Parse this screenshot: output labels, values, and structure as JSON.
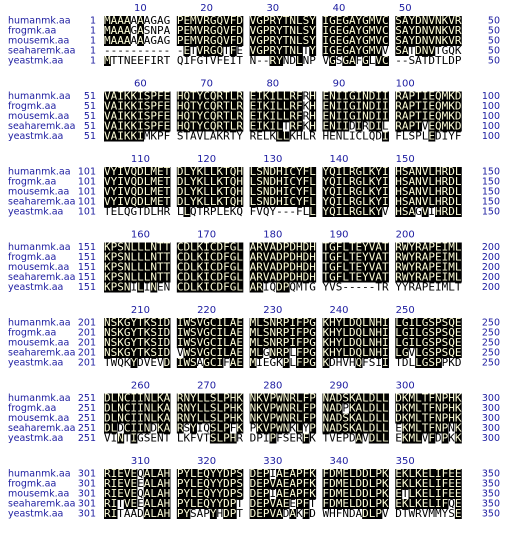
{
  "blocks": [
    {
      "ruler": [
        10,
        20,
        30,
        40,
        50
      ],
      "rows": [
        {
          "name": "humanmk.aa",
          "start": 1,
          "seq": "MAAAAAAGAG PEMVRGQVFD VGPRYTNLSY IGEGAYGMVC SAYDNVNKVR",
          "end": 50
        },
        {
          "name": "frogmk.aa",
          "start": 1,
          "seq": "MAAAGASNPA PEMVRGQVFD VGPRYTNLSY IGEGAYGMVC SAYDNVNKVR",
          "end": 50
        },
        {
          "name": "mousemk.aa",
          "start": 1,
          "seq": "MAAAAAAGAG PEMVRGQVFD VGPRYTNLSY IGEGAYGMVC SAYDNVNKVR",
          "end": 50
        },
        {
          "name": "seaharemk.aa",
          "start": 1,
          "seq": "---------- -ETVRGQTFE VGPRYTNLTY IGEGAYGMVV SATDNVTGQK",
          "end": 50
        },
        {
          "name": "yeastmk.aa",
          "start": 1,
          "seq": "MTTNEEFIRT QIFGTVFEIT N--RYNDLNP VGSGAFGLVC --SATDTLDP",
          "end": 50
        }
      ]
    },
    {
      "ruler": [
        60,
        70,
        80,
        90,
        100
      ],
      "rows": [
        {
          "name": "humanmk.aa",
          "start": 51,
          "seq": "VAIKKISPFE HQTYCQRTLR EIKILLRFRH ENIIGINDII RAPTIEQMKD",
          "end": 100
        },
        {
          "name": "frogmk.aa",
          "start": 51,
          "seq": "VAIKKISPFE HQTYCQRTLR EIKILLRFKH ENIIGINDII RAPTIEQMKD",
          "end": 100
        },
        {
          "name": "mousemk.aa",
          "start": 51,
          "seq": "VAIKKISPFE HQTYCQRTLR EIKILLRFRH ENIIGINDII RAPTIEQMKD",
          "end": 100
        },
        {
          "name": "seaharemk.aa",
          "start": 51,
          "seq": "VAIKKISPFE HQTYCQRTLR EIKILTRFKH ENIIDIRDIL RAPTVEQMKD",
          "end": 100
        },
        {
          "name": "yeastmk.aa",
          "start": 51,
          "seq": "VAIKKIMKPF STAVLAKRTY RELKLLKHLR HENLICLQDI FLSPLEDIYF",
          "end": 100
        }
      ]
    },
    {
      "ruler": [
        110,
        120,
        130,
        140,
        150
      ],
      "rows": [
        {
          "name": "humanmk.aa",
          "start": 101,
          "seq": "VYIVQDLMET DLYKLLKTQH LSNDHICYFL YQILRGLKYI HSANVLHRDL",
          "end": 150
        },
        {
          "name": "frogmk.aa",
          "start": 101,
          "seq": "VYIVQDLMET DLYKLLKTQH LSNDHICYFL YQILRGLKYI HSANVLHRDL",
          "end": 150
        },
        {
          "name": "mousemk.aa",
          "start": 101,
          "seq": "VYIVQDLMET DLYKLLKTQH LSNDHICYFL YQILRGLKYI HSANVLHRDL",
          "end": 150
        },
        {
          "name": "seaharemk.aa",
          "start": 101,
          "seq": "VYIVQDLMET DLYKLLKTQH LSNDHICYFL YQILRGLKYI HSANVLHRDL",
          "end": 150
        },
        {
          "name": "yeastmk.aa",
          "start": 101,
          "seq": "TELQGTDLHR LLQTRPLEKQ FVQY---FLL YQILRGLKYV HSAGVIHRDL",
          "end": 150
        }
      ]
    },
    {
      "ruler": [
        160,
        170,
        180,
        190,
        200
      ],
      "rows": [
        {
          "name": "humanmk.aa",
          "start": 151,
          "seq": "KPSNLLLNTT CDLKICDFGL ARVADPDHDH TGFLTEYVAT RWYRAPEIML",
          "end": 200
        },
        {
          "name": "frogmk.aa",
          "start": 151,
          "seq": "KPSNLLLNTT CDLKICDFGL ARVADPDHDH TGFLTEYVAT RWYRAPEIML",
          "end": 200
        },
        {
          "name": "mousemk.aa",
          "start": 151,
          "seq": "KPSNLLLNTT CDLKICDFGL ARVADPDHDH TGFLTEYVAT RWYRAPEIML",
          "end": 200
        },
        {
          "name": "seaharemk.aa",
          "start": 151,
          "seq": "KPSNLLLNTT CDLKICDFGL ARVADPDHDH TGFLTEYVAT RWYRAPEIML",
          "end": 200
        },
        {
          "name": "yeastmk.aa",
          "start": 151,
          "seq": "KPSNILINEN CDLKICDFGL ARIQDPQMTG YVS-----TR YYRAPEIMLT",
          "end": 200
        }
      ]
    },
    {
      "ruler": [
        210,
        220,
        230,
        240,
        250
      ],
      "rows": [
        {
          "name": "humanmk.aa",
          "start": 201,
          "seq": "NSKGYTKSID IWSVGCILAE MLSNRPIFPG KHYLDQLNHI LGILGSPSQE",
          "end": 250
        },
        {
          "name": "frogmk.aa",
          "start": 201,
          "seq": "NSKGYTKSID IWSVGCILAE MLSNRPIFPG KHYLDQLNHI LGILGSPSQE",
          "end": 250
        },
        {
          "name": "mousemk.aa",
          "start": 201,
          "seq": "NSKGYTKSID IWSVGCILAE MLSNRPIFPG KHYLDQLNHI LGILGSPSQE",
          "end": 250
        },
        {
          "name": "seaharemk.aa",
          "start": 201,
          "seq": "NSKGYTKSID VWSVGCILAE MLGNRPLFPG KHYLDQLNHI LGVLGSPSQE",
          "end": 250
        },
        {
          "name": "yeastmk.aa",
          "start": 201,
          "seq": "TWQKYDVEVD IWSAGCIFAE MIEGKPLFPG KDHVHQFSII TDLLGSPPKD",
          "end": 250
        }
      ]
    },
    {
      "ruler": [
        260,
        270,
        280,
        290,
        300
      ],
      "rows": [
        {
          "name": "humanmk.aa",
          "start": 251,
          "seq": "DLNCIINLKA RNYLLSLPHK NKVPWNRLFP NADSKALDLL DKMLTFNPHK",
          "end": 300
        },
        {
          "name": "frogmk.aa",
          "start": 251,
          "seq": "DLNCIINLKA RNYLLSLPHK NKVPWNRLFP NADPKALDLL DKMLTFNPHK",
          "end": 300
        },
        {
          "name": "mousemk.aa",
          "start": 251,
          "seq": "DLNCIINLKA RNYLLSLPHK NKVPWNRLFP NADSKALDLL DKMLTFNPHK",
          "end": 300
        },
        {
          "name": "seaharemk.aa",
          "start": 251,
          "seq": "DLDCIINDKA RSYIQSLPFK PKVPWNKLYP NADSKALDLL EKMLTFNPNK",
          "end": 300
        },
        {
          "name": "yeastmk.aa",
          "start": 251,
          "seq": "VINTIGSENT LKFVTSLPHR DPIPFSERFK TVEPDAVDLL EKMLVFDPKK",
          "end": 300
        }
      ]
    },
    {
      "ruler": [
        310,
        320,
        330,
        340,
        350
      ],
      "rows": [
        {
          "name": "humanmk.aa",
          "start": 301,
          "seq": "RIEVEQALAH PYLEQYYDPS DEPIAEAPFK FDMELDDLPK EKLKELIFEE",
          "end": 350
        },
        {
          "name": "frogmk.aa",
          "start": 301,
          "seq": "RIEVEEALAH PYLEQYYDPS DEPVAEAPFK FDMELDDLPK EKLKELIFEE",
          "end": 350
        },
        {
          "name": "mousemk.aa",
          "start": 301,
          "seq": "RIEVEQALAH PYLEQYYDPS DEPIAEAPFK FDMELDDLPK ETLKELIFEE",
          "end": 350
        },
        {
          "name": "seaharemk.aa",
          "start": 301,
          "seq": "RITVEEALAH PYLEQYYDPT DEPVAEEPFT FDMELDDLPK EKLKELIFQE",
          "end": 350
        },
        {
          "name": "yeastmk.aa",
          "start": 301,
          "seq": "RITAADALAH PYSAPYHDPT DEPVADAKFD WHFNDADLPV DTWRVMMYSE",
          "end": 350
        }
      ]
    }
  ]
}
